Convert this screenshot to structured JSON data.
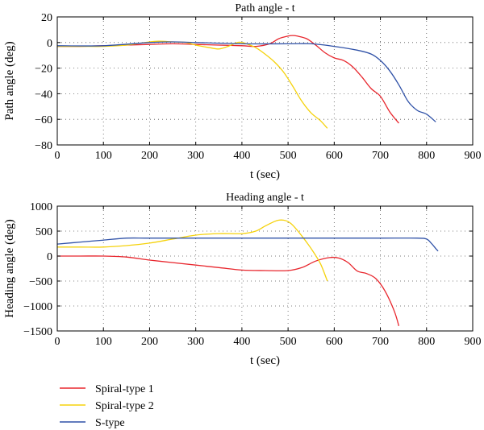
{
  "chart_data": [
    {
      "type": "line",
      "title": "Path angle - t",
      "xlabel": "t (sec)",
      "ylabel": "Path angle (deg)",
      "xlim": [
        0,
        900
      ],
      "ylim": [
        -80,
        20
      ],
      "xticks": [
        0,
        100,
        200,
        300,
        400,
        500,
        600,
        700,
        800,
        900
      ],
      "yticks": [
        20,
        0,
        -20,
        -40,
        -60,
        -80
      ],
      "grid": true,
      "grid_style": "dotted",
      "series": [
        {
          "name": "Spiral-type 1",
          "color": "#e8262d",
          "x": [
            0,
            50,
            100,
            150,
            200,
            250,
            300,
            350,
            400,
            430,
            460,
            480,
            500,
            510,
            520,
            540,
            560,
            580,
            600,
            620,
            640,
            660,
            680,
            700,
            720,
            740
          ],
          "y": [
            -3,
            -3,
            -2.5,
            -2,
            -1.5,
            -1,
            -1.5,
            -2,
            -2.5,
            -3,
            -1,
            3,
            5,
            5.5,
            5,
            3,
            -2,
            -8,
            -12,
            -14,
            -19,
            -27,
            -36,
            -42,
            -54,
            -63
          ]
        },
        {
          "name": "Spiral-type 2",
          "color": "#f5d20c",
          "x": [
            0,
            50,
            100,
            150,
            200,
            220,
            250,
            280,
            300,
            330,
            350,
            370,
            390,
            400,
            410,
            430,
            450,
            470,
            490,
            510,
            530,
            550,
            570,
            585
          ],
          "y": [
            -3,
            -3,
            -3,
            -2,
            0.5,
            1,
            0.5,
            0,
            -2,
            -4,
            -5,
            -3,
            0,
            0,
            -1,
            -4,
            -9,
            -15,
            -23,
            -34,
            -46,
            -55,
            -61,
            -67
          ]
        },
        {
          "name": "S-type",
          "color": "#2f51a7",
          "x": [
            0,
            100,
            200,
            250,
            300,
            400,
            500,
            550,
            600,
            650,
            680,
            700,
            720,
            740,
            760,
            780,
            800,
            820
          ],
          "y": [
            -2.5,
            -2.5,
            0,
            0.5,
            0,
            -1,
            -1,
            -1,
            -3,
            -6,
            -9,
            -14,
            -22,
            -33,
            -46,
            -53,
            -56,
            -62
          ]
        }
      ]
    },
    {
      "type": "line",
      "title": "Heading angle - t",
      "xlabel": "t (sec)",
      "ylabel": "Heading angle (deg)",
      "xlim": [
        0,
        900
      ],
      "ylim": [
        -1500,
        1000
      ],
      "xticks": [
        0,
        100,
        200,
        300,
        400,
        500,
        600,
        700,
        800,
        900
      ],
      "yticks": [
        1000,
        500,
        0,
        -500,
        -1000,
        -1500
      ],
      "grid": true,
      "grid_style": "dotted",
      "series": [
        {
          "name": "Spiral-type 1",
          "color": "#e8262d",
          "x": [
            0,
            50,
            100,
            150,
            200,
            250,
            300,
            350,
            400,
            450,
            500,
            530,
            560,
            590,
            610,
            630,
            650,
            670,
            690,
            710,
            730,
            740
          ],
          "y": [
            0,
            0,
            0,
            -20,
            -80,
            -130,
            -180,
            -230,
            -280,
            -290,
            -290,
            -230,
            -100,
            -30,
            -40,
            -130,
            -300,
            -350,
            -450,
            -700,
            -1100,
            -1400
          ]
        },
        {
          "name": "Spiral-type 2",
          "color": "#f5d20c",
          "x": [
            0,
            50,
            100,
            150,
            200,
            250,
            300,
            350,
            400,
            430,
            450,
            470,
            480,
            490,
            500,
            510,
            530,
            550,
            570,
            585
          ],
          "y": [
            180,
            180,
            180,
            210,
            260,
            340,
            420,
            450,
            450,
            500,
            600,
            690,
            720,
            720,
            690,
            620,
            400,
            150,
            -150,
            -500
          ]
        },
        {
          "name": "S-type",
          "color": "#2f51a7",
          "x": [
            0,
            50,
            100,
            150,
            200,
            300,
            400,
            500,
            600,
            700,
            780,
            800,
            810,
            820,
            825
          ],
          "y": [
            240,
            280,
            320,
            360,
            360,
            360,
            360,
            360,
            360,
            360,
            360,
            340,
            260,
            150,
            100
          ]
        }
      ]
    }
  ],
  "legend": {
    "placement": "bottom-left",
    "entries": [
      {
        "name": "Spiral-type 1",
        "color": "#e8262d"
      },
      {
        "name": "Spiral-type 2",
        "color": "#f5d20c"
      },
      {
        "name": "S-type",
        "color": "#2f51a7"
      }
    ]
  }
}
